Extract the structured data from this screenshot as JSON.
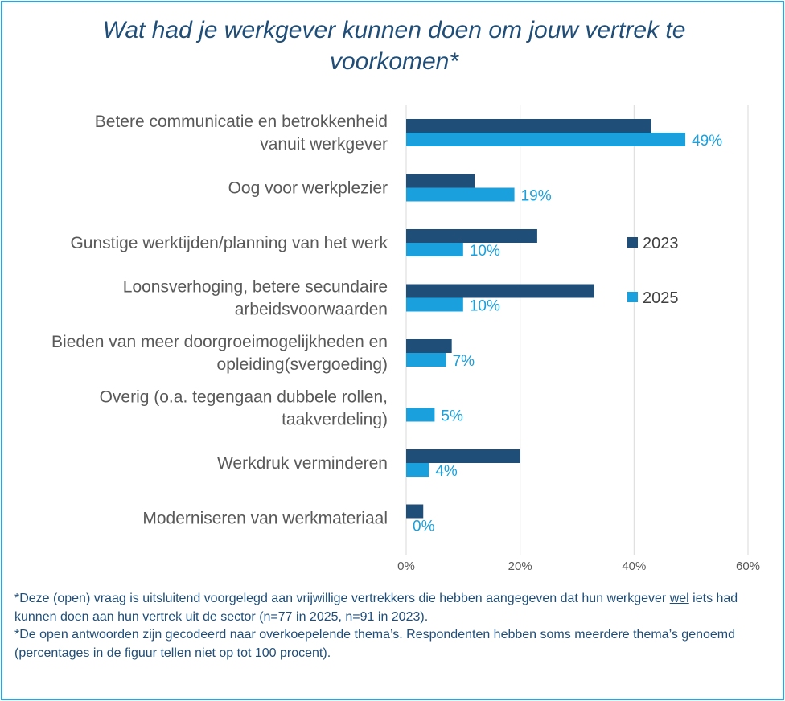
{
  "chart_data": {
    "type": "bar",
    "orientation": "horizontal",
    "title": "Wat had je werkgever kunnen doen om jouw vertrek te voorkomen*",
    "categories": [
      [
        "Betere communicatie en betrokkenheid",
        "vanuit werkgever"
      ],
      [
        "Oog voor werkplezier"
      ],
      [
        "Gunstige werktijden/planning van het werk"
      ],
      [
        "Loonsverhoging, betere secundaire",
        "arbeidsvoorwaarden"
      ],
      [
        "Bieden van meer doorgroeimogelijkheden en",
        "opleiding(svergoeding)"
      ],
      [
        "Overig (o.a. tegengaan dubbele rollen,",
        "taakverdeling)"
      ],
      [
        "Werkdruk verminderen"
      ],
      [
        "Moderniseren van werkmateriaal"
      ]
    ],
    "series": [
      {
        "name": "2023",
        "color": "#1f4e79",
        "values": [
          43,
          12,
          23,
          33,
          8,
          0,
          20,
          3
        ]
      },
      {
        "name": "2025",
        "color": "#1aa0dc",
        "values": [
          49,
          19,
          10,
          10,
          7,
          5,
          4,
          0
        ],
        "data_labels": [
          "49%",
          "19%",
          "10%",
          "10%",
          "7%",
          "5%",
          "4%",
          "0%"
        ]
      }
    ],
    "xlim": [
      0,
      60
    ],
    "x_ticks": [
      "0%",
      "20%",
      "40%",
      "60%"
    ],
    "grid": true,
    "legend_position": "right"
  },
  "footnote": {
    "line1_a": "*Deze (open) vraag is uitsluitend  voorgelegd aan vrijwillige vertrekkers die hebben aangegeven dat hun werkgever ",
    "line1_u": "wel",
    "line1_b": " iets had kunnen doen aan hun vertrek uit de sector (n=77 in 2025, n=91 in 2023).",
    "line2": "*De open antwoorden zijn gecodeerd naar overkoepelende thema’s. Respondenten hebben soms meerdere thema’s genoemd (percentages in de figuur tellen  niet op tot 100 procent)."
  }
}
